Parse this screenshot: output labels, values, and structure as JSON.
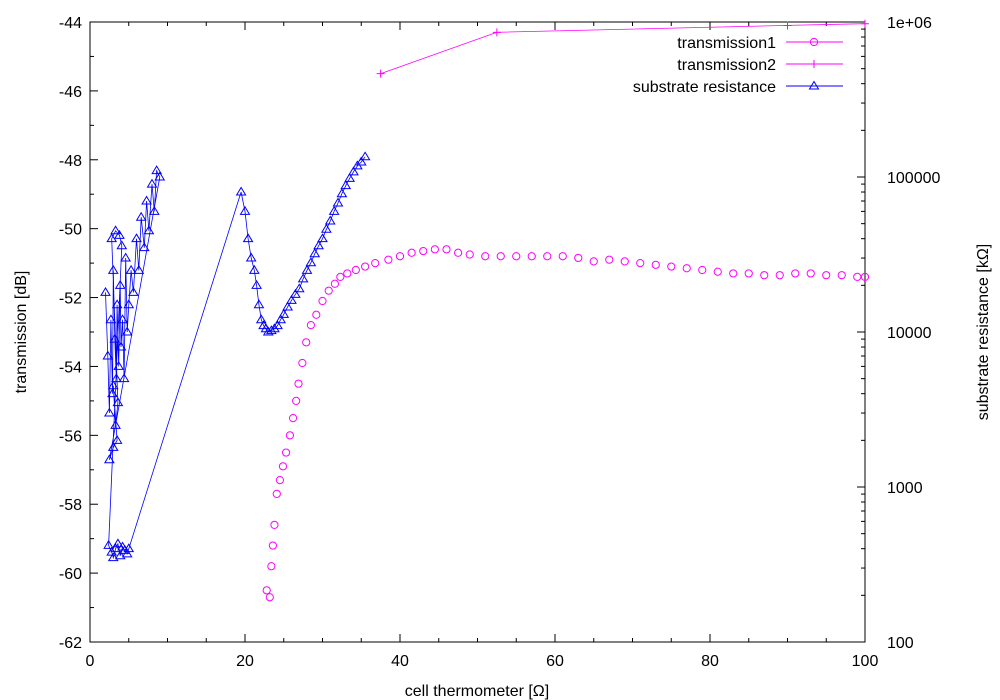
{
  "chart_data": {
    "type": "scatter",
    "xlabel": "cell thermometer [Ω]",
    "ylabel": "transmission [dB]",
    "y2label": "substrate resistance [kΩ]",
    "xlim": [
      0,
      100
    ],
    "ylim": [
      -62,
      -44
    ],
    "y2lim": [
      100,
      1000000
    ],
    "y2scale": "log",
    "grid": false,
    "legend_position": "top-right",
    "xticks": [
      "0",
      "20",
      "40",
      "60",
      "80",
      "100"
    ],
    "yticks": [
      "-62",
      "-60",
      "-58",
      "-56",
      "-54",
      "-52",
      "-50",
      "-48",
      "-46",
      "-44"
    ],
    "y2ticks": [
      "100",
      "1000",
      "10000",
      "100000",
      "1e+06"
    ],
    "colors": {
      "transmission": "#ff00ff",
      "substrate": "#0000ff"
    },
    "series": [
      {
        "name": "transmission1",
        "axis": "left",
        "marker": "circle",
        "points": [
          [
            22.8,
            -60.5
          ],
          [
            23.2,
            -60.7
          ],
          [
            23.4,
            -59.8
          ],
          [
            23.6,
            -59.2
          ],
          [
            23.8,
            -58.6
          ],
          [
            24.1,
            -57.7
          ],
          [
            24.5,
            -57.3
          ],
          [
            24.9,
            -56.9
          ],
          [
            25.3,
            -56.5
          ],
          [
            25.8,
            -56.0
          ],
          [
            26.2,
            -55.5
          ],
          [
            26.6,
            -55.0
          ],
          [
            26.9,
            -54.5
          ],
          [
            27.4,
            -53.9
          ],
          [
            27.9,
            -53.3
          ],
          [
            28.5,
            -52.8
          ],
          [
            29.2,
            -52.5
          ],
          [
            30.0,
            -52.1
          ],
          [
            30.8,
            -51.8
          ],
          [
            31.6,
            -51.6
          ],
          [
            32.3,
            -51.4
          ],
          [
            33.2,
            -51.3
          ],
          [
            34.3,
            -51.2
          ],
          [
            35.5,
            -51.1
          ],
          [
            36.8,
            -51.0
          ],
          [
            38.5,
            -50.9
          ],
          [
            40.0,
            -50.8
          ],
          [
            41.5,
            -50.7
          ],
          [
            43.0,
            -50.65
          ],
          [
            44.5,
            -50.6
          ],
          [
            46.0,
            -50.6
          ],
          [
            47.5,
            -50.7
          ],
          [
            49.0,
            -50.75
          ],
          [
            51.0,
            -50.8
          ],
          [
            53.0,
            -50.8
          ],
          [
            55.0,
            -50.8
          ],
          [
            57.0,
            -50.8
          ],
          [
            59.0,
            -50.8
          ],
          [
            61.0,
            -50.8
          ],
          [
            63.0,
            -50.85
          ],
          [
            65.0,
            -50.95
          ],
          [
            67.0,
            -50.9
          ],
          [
            69.0,
            -50.95
          ],
          [
            71.0,
            -51.0
          ],
          [
            73.0,
            -51.05
          ],
          [
            75.0,
            -51.1
          ],
          [
            77.0,
            -51.15
          ],
          [
            79.0,
            -51.2
          ],
          [
            81.0,
            -51.25
          ],
          [
            83.0,
            -51.3
          ],
          [
            85.0,
            -51.3
          ],
          [
            87.0,
            -51.35
          ],
          [
            89.0,
            -51.35
          ],
          [
            91.0,
            -51.3
          ],
          [
            93.0,
            -51.3
          ],
          [
            95.0,
            -51.35
          ],
          [
            97.0,
            -51.35
          ],
          [
            99.0,
            -51.4
          ],
          [
            100.0,
            -51.4
          ]
        ]
      },
      {
        "name": "transmission2",
        "axis": "left",
        "marker": "plus",
        "points": [
          [
            37.5,
            -45.5
          ],
          [
            52.5,
            -44.3
          ],
          [
            90.0,
            -44.1
          ],
          [
            100.0,
            -44.05
          ]
        ]
      },
      {
        "name": "substrate resistance",
        "axis": "right",
        "marker": "triangle",
        "points": [
          [
            2.0,
            18000
          ],
          [
            2.3,
            7000
          ],
          [
            2.5,
            3000
          ],
          [
            2.7,
            12000
          ],
          [
            2.9,
            4000
          ],
          [
            3.0,
            25000
          ],
          [
            3.2,
            9000
          ],
          [
            3.4,
            5000
          ],
          [
            3.5,
            15000
          ],
          [
            3.7,
            6000
          ],
          [
            3.9,
            20000
          ],
          [
            4.0,
            8000
          ],
          [
            4.2,
            12000
          ],
          [
            4.4,
            5000
          ],
          [
            4.6,
            30000
          ],
          [
            4.8,
            10000
          ],
          [
            5.0,
            15000
          ],
          [
            5.3,
            25000
          ],
          [
            5.6,
            18000
          ],
          [
            6.0,
            40000
          ],
          [
            6.3,
            25000
          ],
          [
            6.6,
            55000
          ],
          [
            7.0,
            35000
          ],
          [
            7.3,
            70000
          ],
          [
            7.6,
            45000
          ],
          [
            8.0,
            90000
          ],
          [
            8.3,
            60000
          ],
          [
            8.6,
            110000
          ],
          [
            9.0,
            100000
          ],
          [
            2.5,
            1500
          ],
          [
            3.0,
            1800
          ],
          [
            3.5,
            2000
          ],
          [
            3.0,
            4500
          ],
          [
            3.3,
            2500
          ],
          [
            3.6,
            3500
          ],
          [
            2.8,
            40000
          ],
          [
            3.3,
            45000
          ],
          [
            3.8,
            42000
          ],
          [
            4.1,
            36000
          ],
          [
            2.4,
            420
          ],
          [
            2.8,
            380
          ],
          [
            3.0,
            350
          ],
          [
            3.3,
            400
          ],
          [
            3.6,
            430
          ],
          [
            3.9,
            360
          ],
          [
            4.2,
            410
          ],
          [
            4.5,
            390
          ],
          [
            4.8,
            370
          ],
          [
            5.0,
            400
          ],
          [
            19.5,
            80000
          ],
          [
            20.0,
            60000
          ],
          [
            20.4,
            40000
          ],
          [
            20.8,
            30000
          ],
          [
            21.2,
            25000
          ],
          [
            21.5,
            20000
          ],
          [
            21.8,
            15000
          ],
          [
            22.1,
            12000
          ],
          [
            22.4,
            11000
          ],
          [
            22.7,
            10500
          ],
          [
            23.0,
            10000
          ],
          [
            23.4,
            10200
          ],
          [
            23.8,
            10500
          ],
          [
            24.2,
            11000
          ],
          [
            24.6,
            12000
          ],
          [
            25.0,
            13000
          ],
          [
            25.5,
            14500
          ],
          [
            26.0,
            16000
          ],
          [
            26.5,
            17500
          ],
          [
            27.0,
            19000
          ],
          [
            27.5,
            22000
          ],
          [
            28.0,
            25000
          ],
          [
            28.5,
            28000
          ],
          [
            29.0,
            32000
          ],
          [
            29.5,
            36000
          ],
          [
            30.0,
            40000
          ],
          [
            30.5,
            46000
          ],
          [
            31.0,
            52000
          ],
          [
            31.5,
            60000
          ],
          [
            32.0,
            68000
          ],
          [
            32.5,
            78000
          ],
          [
            33.0,
            88000
          ],
          [
            33.5,
            98000
          ],
          [
            34.0,
            108000
          ],
          [
            34.5,
            118000
          ],
          [
            35.0,
            125000
          ],
          [
            35.5,
            135000
          ]
        ]
      }
    ]
  }
}
